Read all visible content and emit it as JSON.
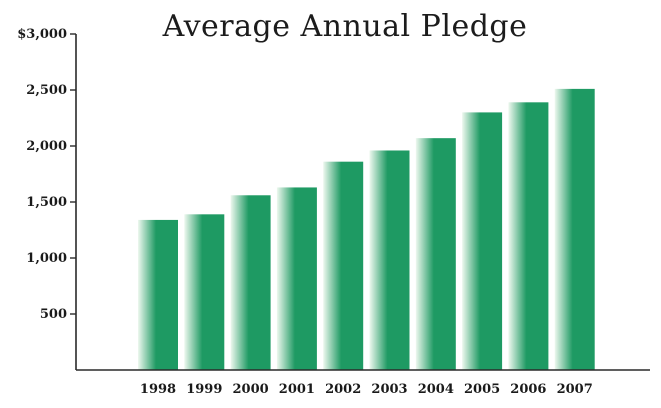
{
  "chart_data": {
    "type": "bar",
    "title": "Average Annual Pledge",
    "categories": [
      "1998",
      "1999",
      "2000",
      "2001",
      "2002",
      "2003",
      "2004",
      "2005",
      "2006",
      "2007"
    ],
    "values": [
      1340,
      1390,
      1560,
      1630,
      1860,
      1960,
      2070,
      2300,
      2390,
      2510
    ],
    "ylim": [
      0,
      3000
    ],
    "yticks": [
      500,
      1000,
      1500,
      2000,
      2500,
      3000
    ],
    "ytick_labels": [
      "500",
      "1,000",
      "1,500",
      "2,000",
      "2,500",
      "$3,000"
    ],
    "xlabel": "",
    "ylabel": "",
    "grid": false,
    "colors": {
      "bar": "#1e9a63",
      "bar_light": "#eef8ef",
      "axis": "#2a2a2a"
    }
  }
}
